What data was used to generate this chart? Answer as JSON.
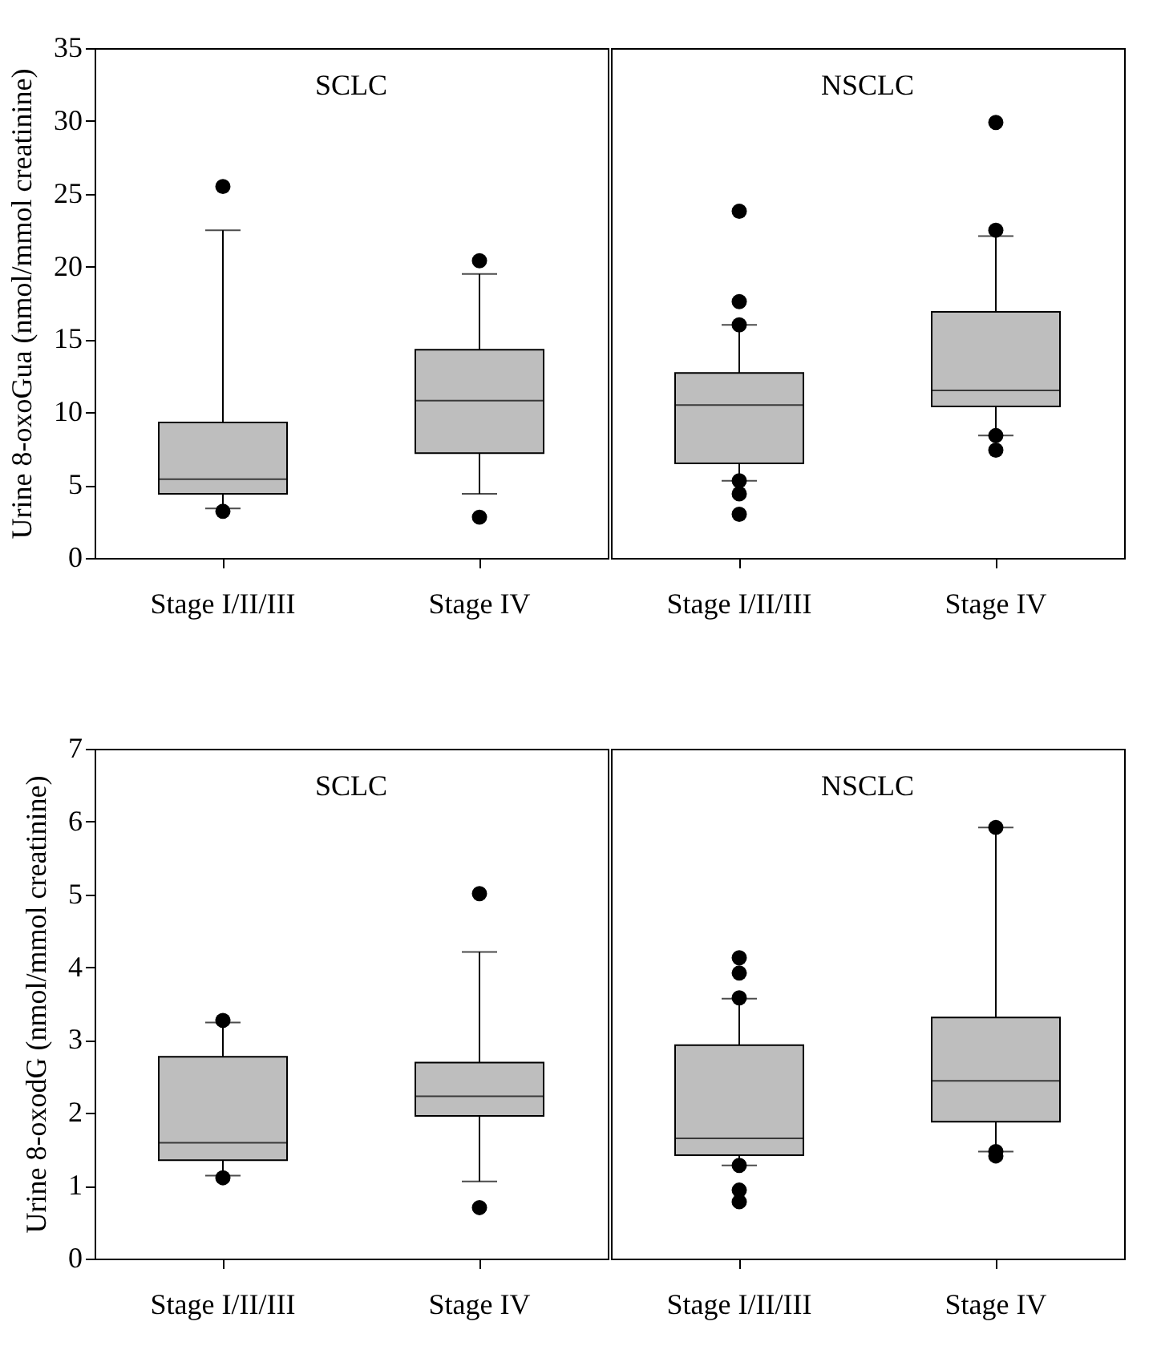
{
  "chart_data": [
    {
      "type": "box",
      "title": "SCLC",
      "ylabel": "Urine 8-oxoGua (nmol/mmol creatinine)",
      "categories": [
        "Stage I/II/III",
        "Stage IV"
      ],
      "color": "#bebebe",
      "ylim": [
        0,
        35
      ],
      "yticks": [
        0,
        5,
        10,
        15,
        20,
        25,
        30,
        35
      ],
      "marker": "circle",
      "grid": false,
      "boxes": [
        {
          "low": 3.4,
          "q1": 4.4,
          "median": 5.4,
          "q3": 9.3,
          "high": 22.5,
          "outliers": [
            25.5,
            3.2
          ]
        },
        {
          "low": 4.4,
          "q1": 7.2,
          "median": 10.8,
          "q3": 14.3,
          "high": 19.5,
          "outliers": [
            20.4,
            2.8
          ]
        }
      ]
    },
    {
      "type": "box",
      "title": "NSCLC",
      "categories": [
        "Stage I/II/III",
        "Stage IV"
      ],
      "color": "#bebebe",
      "ylim": [
        0,
        35
      ],
      "tick_labels": "x",
      "marker": "circle",
      "grid": false,
      "boxes": [
        {
          "low": 5.3,
          "q1": 6.5,
          "median": 10.5,
          "q3": 12.7,
          "high": 16.0,
          "outliers": [
            23.8,
            17.6,
            16.0,
            5.3,
            4.4,
            3.0
          ]
        },
        {
          "low": 8.4,
          "q1": 10.4,
          "median": 11.5,
          "q3": 16.9,
          "high": 22.1,
          "outliers": [
            29.9,
            22.5,
            8.4,
            7.4
          ]
        }
      ]
    },
    {
      "type": "box",
      "title": "SCLC",
      "ylabel": "Urine 8-oxodG (nmol/mmol creatinine)",
      "categories": [
        "Stage I/II/III",
        "Stage IV"
      ],
      "color": "#bebebe",
      "ylim": [
        0,
        7
      ],
      "yticks": [
        0,
        1,
        2,
        3,
        4,
        5,
        6,
        7
      ],
      "marker": "circle",
      "grid": false,
      "boxes": [
        {
          "low": 1.14,
          "q1": 1.35,
          "median": 1.59,
          "q3": 2.77,
          "high": 3.24,
          "outliers": [
            3.27,
            1.11
          ]
        },
        {
          "low": 1.06,
          "q1": 1.96,
          "median": 2.23,
          "q3": 2.69,
          "high": 4.21,
          "outliers": [
            5.01,
            0.7
          ]
        }
      ]
    },
    {
      "type": "box",
      "title": "NSCLC",
      "categories": [
        "Stage I/II/III",
        "Stage IV"
      ],
      "color": "#bebebe",
      "ylim": [
        0,
        7
      ],
      "tick_labels": "x",
      "marker": "circle",
      "grid": false,
      "boxes": [
        {
          "low": 1.28,
          "q1": 1.42,
          "median": 1.65,
          "q3": 2.93,
          "high": 3.57,
          "outliers": [
            4.13,
            3.92,
            3.58,
            1.28,
            0.94,
            0.78
          ]
        },
        {
          "low": 1.47,
          "q1": 1.88,
          "median": 2.44,
          "q3": 3.31,
          "high": 5.92,
          "outliers": [
            5.92,
            1.47,
            1.41
          ]
        }
      ]
    }
  ]
}
